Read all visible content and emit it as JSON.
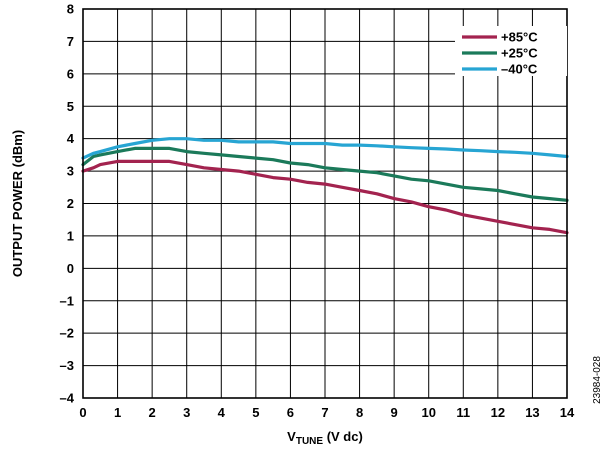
{
  "chart_data": {
    "type": "line",
    "xlabel": "V",
    "xlabel_sub": "TUNE",
    "xlabel_suffix": " (V dc)",
    "ylabel": "OUTPUT POWER (dBm)",
    "xlim": [
      0,
      14
    ],
    "ylim": [
      -4,
      8
    ],
    "x_ticks": [
      "0",
      "1",
      "2",
      "3",
      "4",
      "5",
      "6",
      "7",
      "8",
      "9",
      "10",
      "11",
      "12",
      "13",
      "14"
    ],
    "y_ticks": [
      "8",
      "7",
      "6",
      "5",
      "4",
      "3",
      "2",
      "1",
      "0",
      "–1",
      "–2",
      "–3",
      "–4"
    ],
    "grid": true,
    "legend_position": "top-right",
    "figure_code": "23984-028",
    "series": [
      {
        "name": "+85°C",
        "color": "#a3234f",
        "points": [
          [
            0,
            3.0
          ],
          [
            0.3,
            3.1
          ],
          [
            0.5,
            3.2
          ],
          [
            1,
            3.3
          ],
          [
            1.5,
            3.3
          ],
          [
            2,
            3.3
          ],
          [
            2.5,
            3.3
          ],
          [
            3,
            3.2
          ],
          [
            3.5,
            3.1
          ],
          [
            4,
            3.05
          ],
          [
            4.5,
            3.0
          ],
          [
            5,
            2.9
          ],
          [
            5.5,
            2.8
          ],
          [
            6,
            2.75
          ],
          [
            6.5,
            2.65
          ],
          [
            7,
            2.6
          ],
          [
            7.5,
            2.5
          ],
          [
            8,
            2.4
          ],
          [
            8.5,
            2.3
          ],
          [
            9,
            2.15
          ],
          [
            9.5,
            2.05
          ],
          [
            10,
            1.9
          ],
          [
            10.5,
            1.8
          ],
          [
            11,
            1.65
          ],
          [
            11.5,
            1.55
          ],
          [
            12,
            1.45
          ],
          [
            12.5,
            1.35
          ],
          [
            13,
            1.25
          ],
          [
            13.5,
            1.2
          ],
          [
            14,
            1.1
          ]
        ]
      },
      {
        "name": "+25°C",
        "color": "#1b7a5a",
        "points": [
          [
            0,
            3.2
          ],
          [
            0.3,
            3.45
          ],
          [
            0.5,
            3.5
          ],
          [
            1,
            3.6
          ],
          [
            1.5,
            3.7
          ],
          [
            2,
            3.7
          ],
          [
            2.5,
            3.7
          ],
          [
            3,
            3.6
          ],
          [
            3.5,
            3.55
          ],
          [
            4,
            3.5
          ],
          [
            4.5,
            3.45
          ],
          [
            5,
            3.4
          ],
          [
            5.5,
            3.35
          ],
          [
            6,
            3.25
          ],
          [
            6.5,
            3.2
          ],
          [
            7,
            3.1
          ],
          [
            7.5,
            3.05
          ],
          [
            8,
            3.0
          ],
          [
            8.5,
            2.95
          ],
          [
            9,
            2.85
          ],
          [
            9.5,
            2.75
          ],
          [
            10,
            2.7
          ],
          [
            10.5,
            2.6
          ],
          [
            11,
            2.5
          ],
          [
            11.5,
            2.45
          ],
          [
            12,
            2.4
          ],
          [
            12.5,
            2.3
          ],
          [
            13,
            2.2
          ],
          [
            13.5,
            2.15
          ],
          [
            14,
            2.1
          ]
        ]
      },
      {
        "name": "–40°C",
        "color": "#27a5d3",
        "points": [
          [
            0,
            3.4
          ],
          [
            0.3,
            3.55
          ],
          [
            0.5,
            3.6
          ],
          [
            1,
            3.75
          ],
          [
            1.5,
            3.85
          ],
          [
            2,
            3.95
          ],
          [
            2.5,
            4.0
          ],
          [
            3,
            4.0
          ],
          [
            3.5,
            3.95
          ],
          [
            4,
            3.95
          ],
          [
            4.5,
            3.9
          ],
          [
            5,
            3.9
          ],
          [
            5.5,
            3.9
          ],
          [
            6,
            3.85
          ],
          [
            6.5,
            3.85
          ],
          [
            7,
            3.85
          ],
          [
            7.5,
            3.8
          ],
          [
            8,
            3.8
          ],
          [
            8.5,
            3.78
          ],
          [
            9,
            3.75
          ],
          [
            9.5,
            3.72
          ],
          [
            10,
            3.7
          ],
          [
            10.5,
            3.68
          ],
          [
            11,
            3.65
          ],
          [
            11.5,
            3.63
          ],
          [
            12,
            3.6
          ],
          [
            12.5,
            3.58
          ],
          [
            13,
            3.55
          ],
          [
            13.5,
            3.5
          ],
          [
            14,
            3.45
          ]
        ]
      }
    ]
  }
}
